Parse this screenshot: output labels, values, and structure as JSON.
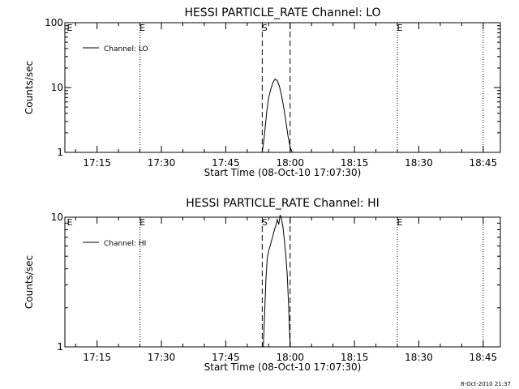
{
  "timestamp": "8-Oct-2010 21:37",
  "chart_data": [
    {
      "type": "line",
      "title": "HESSI PARTICLE_RATE Channel: LO",
      "ylabel": "Counts/sec",
      "xlabel": "Start Time (08-Oct-10 17:07:30)",
      "yscale": "log",
      "ylim": [
        1,
        100
      ],
      "ytick_labels": [
        "1",
        "10",
        "100"
      ],
      "xlim": [
        "17:07:30",
        "18:49:00"
      ],
      "xtick_labels": [
        "17:15",
        "17:30",
        "17:45",
        "18:00",
        "18:15",
        "18:30",
        "18:45"
      ],
      "legend": {
        "label": "Channel: LO",
        "position": "top-left"
      },
      "vlines": [
        {
          "time": "17:25:00",
          "style": "dotted",
          "label": "E"
        },
        {
          "time": "17:53:30",
          "style": "dashed",
          "label": "S"
        },
        {
          "time": "18:00:00",
          "style": "dashed",
          "label": ""
        },
        {
          "time": "18:25:00",
          "style": "dotted",
          "label": "E"
        },
        {
          "time": "18:45:00",
          "style": "dotted",
          "label": ""
        }
      ],
      "series": [
        {
          "name": "Channel: LO",
          "x": [
            "17:53:30",
            "17:54:00",
            "17:54:30",
            "17:55:00",
            "17:55:30",
            "17:56:00",
            "17:56:30",
            "17:57:00",
            "17:57:30",
            "17:58:00",
            "17:58:30",
            "17:59:00",
            "17:59:30",
            "18:00:00",
            "18:00:30"
          ],
          "values": [
            1,
            1.8,
            4.0,
            7.0,
            9.5,
            12.0,
            13.5,
            12.8,
            10.5,
            7.5,
            5.0,
            3.0,
            1.8,
            1.2,
            1
          ]
        }
      ]
    },
    {
      "type": "line",
      "title": "HESSI PARTICLE_RATE Channel: HI",
      "ylabel": "Counts/sec",
      "xlabel": "Start Time (08-Oct-10 17:07:30)",
      "yscale": "log",
      "ylim": [
        1,
        10
      ],
      "ytick_labels": [
        "1",
        "10"
      ],
      "xlim": [
        "17:07:30",
        "18:49:00"
      ],
      "xtick_labels": [
        "17:15",
        "17:30",
        "17:45",
        "18:00",
        "18:15",
        "18:30",
        "18:45"
      ],
      "legend": {
        "label": "Channel: HI",
        "position": "top-left"
      },
      "vlines": [
        {
          "time": "17:25:00",
          "style": "dotted",
          "label": "E"
        },
        {
          "time": "17:53:30",
          "style": "dashed",
          "label": "S"
        },
        {
          "time": "18:00:00",
          "style": "dashed",
          "label": ""
        },
        {
          "time": "18:25:00",
          "style": "dotted",
          "label": "E"
        },
        {
          "time": "18:45:00",
          "style": "dotted",
          "label": ""
        }
      ],
      "series": [
        {
          "name": "Channel: HI",
          "x": [
            "17:53:45",
            "17:54:00",
            "17:54:20",
            "17:54:40",
            "17:55:00",
            "17:55:20",
            "17:55:40",
            "17:56:00",
            "17:56:20",
            "17:56:40",
            "17:57:00",
            "17:57:20",
            "17:57:40",
            "17:58:00",
            "17:58:20",
            "17:58:40",
            "17:59:00",
            "17:59:20",
            "17:59:40",
            "18:00:00"
          ],
          "values": [
            1,
            1.6,
            3.2,
            4.8,
            5.5,
            6.0,
            6.6,
            7.2,
            8.0,
            8.6,
            9.6,
            8.8,
            10.4,
            9.6,
            8.4,
            6.6,
            5.0,
            3.6,
            2.0,
            1
          ]
        }
      ]
    }
  ]
}
